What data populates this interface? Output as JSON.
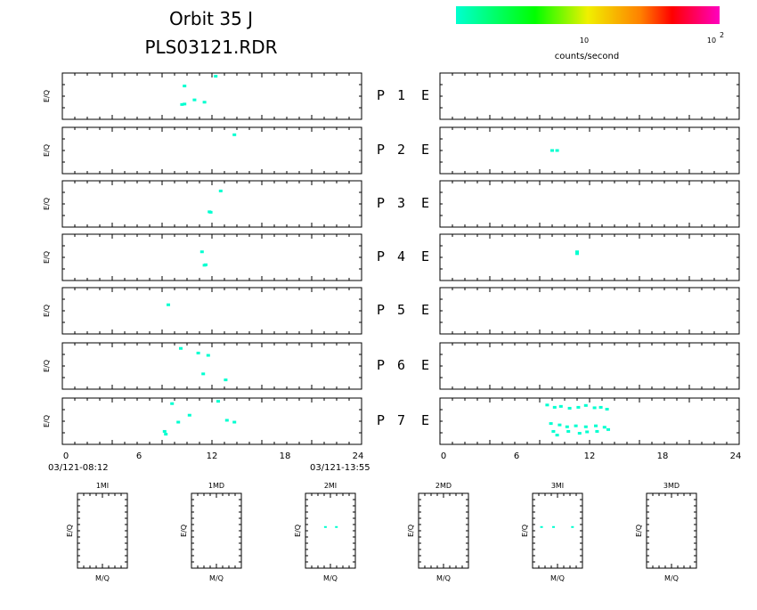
{
  "header": {
    "title_line1": "Orbit 35 J",
    "title_line2": "PLS03121.RDR"
  },
  "colorbar": {
    "colors": [
      "#00ffd0",
      "#00ff00",
      "#f0f000",
      "#ff8000",
      "#ff0000",
      "#ff00c0"
    ],
    "tick1": "10",
    "tick2": "10",
    "tick2_exp": "2",
    "label": "counts/second"
  },
  "left_xaxis": {
    "ticks": [
      "0",
      "6",
      "12",
      "18",
      "24"
    ],
    "start_time": "03/121-08:12",
    "end_time": "03/121-13:55"
  },
  "right_xaxis": {
    "ticks": [
      "0",
      "6",
      "12",
      "18",
      "24"
    ]
  },
  "ylabel": "E/Q",
  "xlabel_small": "M/Q",
  "rows": [
    {
      "p": "P",
      "n": "1",
      "e": "E"
    },
    {
      "p": "P",
      "n": "2",
      "e": "E"
    },
    {
      "p": "P",
      "n": "3",
      "e": "E"
    },
    {
      "p": "P",
      "n": "4",
      "e": "E"
    },
    {
      "p": "P",
      "n": "5",
      "e": "E"
    },
    {
      "p": "P",
      "n": "6",
      "e": "E"
    },
    {
      "p": "P",
      "n": "7",
      "e": "E"
    }
  ],
  "small_panels": [
    "1MI",
    "1MD",
    "2MI",
    "2MD",
    "3MI",
    "3MD"
  ],
  "chart_data": {
    "type": "heatmap",
    "x_range": [
      0,
      24
    ],
    "x_ticks": [
      0,
      6,
      12,
      18,
      24
    ],
    "color": "#00ffd0",
    "left_points": [
      [
        [
          12.3,
          0.93
        ],
        [
          9.8,
          0.72
        ],
        [
          10.6,
          0.42
        ],
        [
          11.4,
          0.37
        ],
        [
          9.6,
          0.32
        ],
        [
          9.8,
          0.33
        ]
      ],
      [
        [
          13.8,
          0.84
        ]
      ],
      [
        [
          12.7,
          0.78
        ],
        [
          11.9,
          0.32
        ],
        [
          11.8,
          0.33
        ]
      ],
      [
        [
          11.2,
          0.62
        ],
        [
          11.4,
          0.33
        ],
        [
          11.5,
          0.34
        ]
      ],
      [
        [
          8.5,
          0.63
        ]
      ],
      [
        [
          9.5,
          0.88
        ],
        [
          10.9,
          0.78
        ],
        [
          11.7,
          0.73
        ],
        [
          11.3,
          0.33
        ],
        [
          13.1,
          0.2
        ]
      ],
      [
        [
          8.8,
          0.88
        ],
        [
          12.5,
          0.93
        ],
        [
          10.2,
          0.63
        ],
        [
          9.3,
          0.48
        ],
        [
          13.2,
          0.52
        ],
        [
          13.8,
          0.48
        ],
        [
          8.2,
          0.28
        ],
        [
          8.3,
          0.22
        ]
      ]
    ],
    "right_points": [
      [],
      [
        [
          9.0,
          0.5
        ],
        [
          9.4,
          0.5
        ]
      ],
      [],
      [
        [
          11.0,
          0.62
        ],
        [
          11.0,
          0.58
        ]
      ],
      [],
      [],
      [
        [
          8.6,
          0.85
        ],
        [
          9.2,
          0.8
        ],
        [
          9.7,
          0.82
        ],
        [
          10.4,
          0.78
        ],
        [
          11.1,
          0.8
        ],
        [
          11.7,
          0.84
        ],
        [
          12.4,
          0.79
        ],
        [
          12.9,
          0.8
        ],
        [
          13.4,
          0.76
        ],
        [
          8.9,
          0.45
        ],
        [
          9.6,
          0.42
        ],
        [
          10.2,
          0.38
        ],
        [
          10.9,
          0.4
        ],
        [
          11.7,
          0.38
        ],
        [
          12.5,
          0.4
        ],
        [
          13.2,
          0.37
        ],
        [
          9.1,
          0.28
        ],
        [
          10.3,
          0.28
        ],
        [
          11.8,
          0.27
        ],
        [
          12.6,
          0.28
        ],
        [
          13.5,
          0.32
        ],
        [
          9.4,
          0.2
        ],
        [
          11.2,
          0.24
        ]
      ]
    ],
    "small_points": [
      [],
      [],
      [
        [
          0.4,
          0.55
        ],
        [
          0.62,
          0.55
        ]
      ],
      [],
      [
        [
          0.18,
          0.55
        ],
        [
          0.42,
          0.55
        ],
        [
          0.8,
          0.55
        ]
      ],
      []
    ]
  }
}
